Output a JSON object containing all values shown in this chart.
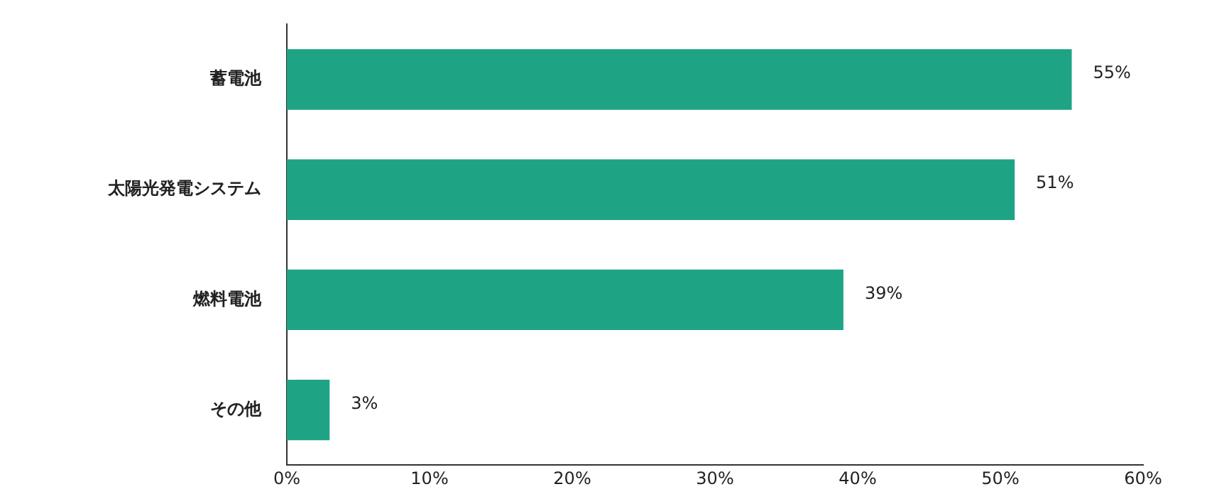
{
  "chart_data": {
    "type": "bar",
    "orientation": "horizontal",
    "categories": [
      "蓄電池",
      "太陽光発電システム",
      "燃料電池",
      "その他"
    ],
    "values": [
      55,
      51,
      39,
      3
    ],
    "value_labels": [
      "55%",
      "51%",
      "39%",
      "3%"
    ],
    "color": "#1fa385",
    "xlim": [
      0,
      60
    ],
    "xticks": [
      {
        "value": 0,
        "label": "0%"
      },
      {
        "value": 10,
        "label": "10%"
      },
      {
        "value": 20,
        "label": "20%"
      },
      {
        "value": 30,
        "label": "30%"
      },
      {
        "value": 40,
        "label": "40%"
      },
      {
        "value": 50,
        "label": "50%"
      },
      {
        "value": 60,
        "label": "60%"
      }
    ],
    "grid": false,
    "legend": false
  }
}
